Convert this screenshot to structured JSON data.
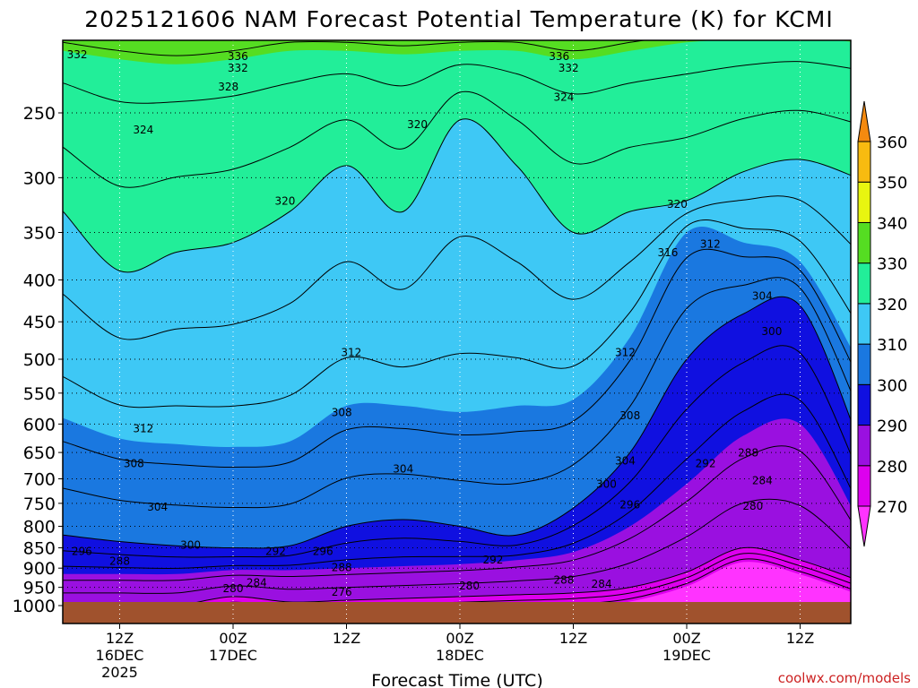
{
  "chart_data": {
    "type": "contour",
    "title": "2025121606 NAM Forecast Potential Temperature (K) for KCMI",
    "xlabel": "Forecast Time (UTC)",
    "ylabel": "",
    "credit": "coolwx.com/models",
    "y_axis": {
      "scale": "log",
      "ylim": [
        1000,
        200
      ],
      "ticks": [
        250,
        300,
        350,
        400,
        450,
        500,
        550,
        600,
        650,
        700,
        750,
        800,
        850,
        900,
        950,
        1000
      ]
    },
    "x_axis": {
      "range_hours": [
        0,
        84
      ],
      "ticks": [
        {
          "hour": 6,
          "lines": [
            "12Z",
            "16DEC",
            "2025"
          ]
        },
        {
          "hour": 18,
          "lines": [
            "00Z",
            "17DEC"
          ]
        },
        {
          "hour": 30,
          "lines": [
            "12Z"
          ]
        },
        {
          "hour": 42,
          "lines": [
            "00Z",
            "18DEC"
          ]
        },
        {
          "hour": 54,
          "lines": [
            "12Z"
          ]
        },
        {
          "hour": 66,
          "lines": [
            "00Z",
            "19DEC"
          ]
        },
        {
          "hour": 78,
          "lines": [
            "12Z"
          ]
        }
      ]
    },
    "colorbar": {
      "levels": [
        270,
        280,
        290,
        300,
        310,
        320,
        330,
        340,
        350,
        360
      ],
      "bands": [
        {
          "from": 260,
          "to": 270,
          "color": "#ff33ff"
        },
        {
          "from": 270,
          "to": 280,
          "color": "#dd00ee"
        },
        {
          "from": 280,
          "to": 290,
          "color": "#9a10e0"
        },
        {
          "from": 290,
          "to": 300,
          "color": "#1010e0"
        },
        {
          "from": 300,
          "to": 310,
          "color": "#1a78e0"
        },
        {
          "from": 310,
          "to": 320,
          "color": "#3ec8f5"
        },
        {
          "from": 320,
          "to": 330,
          "color": "#22ee99"
        },
        {
          "from": 330,
          "to": 340,
          "color": "#55dd22"
        },
        {
          "from": 340,
          "to": 350,
          "color": "#e8f510"
        },
        {
          "from": 350,
          "to": 360,
          "color": "#f8bb10"
        },
        {
          "from": 360,
          "to": 370,
          "color": "#f48a10"
        }
      ]
    },
    "ground_color": "#a0522d",
    "profiles_note": "approximate pressure (hPa) of each isentrope vs forecast hour",
    "hours": [
      0,
      6,
      12,
      18,
      24,
      30,
      36,
      42,
      48,
      54,
      60,
      66,
      72,
      78,
      84
    ],
    "isentropes": [
      {
        "theta": 280,
        "p": [
          1000,
          1000,
          1000,
          975,
          990,
          985,
          980,
          975,
          970,
          965,
          950,
          910,
          850,
          880,
          930
        ]
      },
      {
        "theta": 290,
        "p": [
          915,
          915,
          915,
          905,
          905,
          900,
          895,
          890,
          880,
          860,
          800,
          710,
          620,
          600,
          780
        ]
      },
      {
        "theta": 300,
        "p": [
          820,
          835,
          845,
          850,
          845,
          800,
          785,
          800,
          820,
          760,
          650,
          500,
          440,
          430,
          620
        ]
      },
      {
        "theta": 310,
        "p": [
          590,
          625,
          635,
          640,
          630,
          570,
          570,
          580,
          570,
          560,
          470,
          350,
          360,
          380,
          500
        ]
      },
      {
        "theta": 320,
        "p": [
          330,
          390,
          370,
          360,
          330,
          290,
          330,
          255,
          290,
          350,
          330,
          320,
          295,
          285,
          300
        ]
      },
      {
        "theta": 330,
        "p": [
          210,
          215,
          218,
          215,
          210,
          210,
          212,
          210,
          210,
          215,
          210,
          205,
          203,
          202,
          205
        ]
      }
    ],
    "contour_labels": [
      {
        "text": "332",
        "hour": 1.5,
        "p": 212
      },
      {
        "text": "336",
        "hour": 18.5,
        "p": 213
      },
      {
        "text": "332",
        "hour": 18.5,
        "p": 220
      },
      {
        "text": "328",
        "hour": 17.5,
        "p": 232
      },
      {
        "text": "324",
        "hour": 8.5,
        "p": 262
      },
      {
        "text": "320",
        "hour": 23.5,
        "p": 320
      },
      {
        "text": "320",
        "hour": 37.5,
        "p": 258
      },
      {
        "text": "336",
        "hour": 52.5,
        "p": 213
      },
      {
        "text": "332",
        "hour": 53.5,
        "p": 220
      },
      {
        "text": "324",
        "hour": 53.0,
        "p": 239
      },
      {
        "text": "320",
        "hour": 65.0,
        "p": 323
      },
      {
        "text": "316",
        "hour": 64.0,
        "p": 370
      },
      {
        "text": "312",
        "hour": 68.5,
        "p": 361
      },
      {
        "text": "304",
        "hour": 74.0,
        "p": 418
      },
      {
        "text": "300",
        "hour": 75.0,
        "p": 462
      },
      {
        "text": "312",
        "hour": 30.5,
        "p": 490
      },
      {
        "text": "312",
        "hour": 59.5,
        "p": 490
      },
      {
        "text": "312",
        "hour": 8.5,
        "p": 607
      },
      {
        "text": "308",
        "hour": 29.5,
        "p": 580
      },
      {
        "text": "308",
        "hour": 60.0,
        "p": 585
      },
      {
        "text": "308",
        "hour": 7.5,
        "p": 670
      },
      {
        "text": "304",
        "hour": 36.0,
        "p": 680
      },
      {
        "text": "304",
        "hour": 59.5,
        "p": 665
      },
      {
        "text": "304",
        "hour": 10.0,
        "p": 757
      },
      {
        "text": "300",
        "hour": 57.5,
        "p": 710
      },
      {
        "text": "296",
        "hour": 60.0,
        "p": 752
      },
      {
        "text": "300",
        "hour": 13.5,
        "p": 842
      },
      {
        "text": "296",
        "hour": 2.0,
        "p": 857
      },
      {
        "text": "292",
        "hour": 22.5,
        "p": 857
      },
      {
        "text": "296",
        "hour": 27.5,
        "p": 857
      },
      {
        "text": "292",
        "hour": 45.5,
        "p": 878
      },
      {
        "text": "292",
        "hour": 68.0,
        "p": 670
      },
      {
        "text": "288",
        "hour": 72.5,
        "p": 650
      },
      {
        "text": "284",
        "hour": 74.0,
        "p": 703
      },
      {
        "text": "280",
        "hour": 73.0,
        "p": 755
      },
      {
        "text": "288",
        "hour": 6.0,
        "p": 882
      },
      {
        "text": "288",
        "hour": 29.5,
        "p": 897
      },
      {
        "text": "288",
        "hour": 53.0,
        "p": 930
      },
      {
        "text": "284",
        "hour": 20.5,
        "p": 937
      },
      {
        "text": "284",
        "hour": 57.0,
        "p": 940
      },
      {
        "text": "280",
        "hour": 18.0,
        "p": 952
      },
      {
        "text": "276",
        "hour": 29.5,
        "p": 962
      },
      {
        "text": "280",
        "hour": 43.0,
        "p": 945
      }
    ]
  }
}
